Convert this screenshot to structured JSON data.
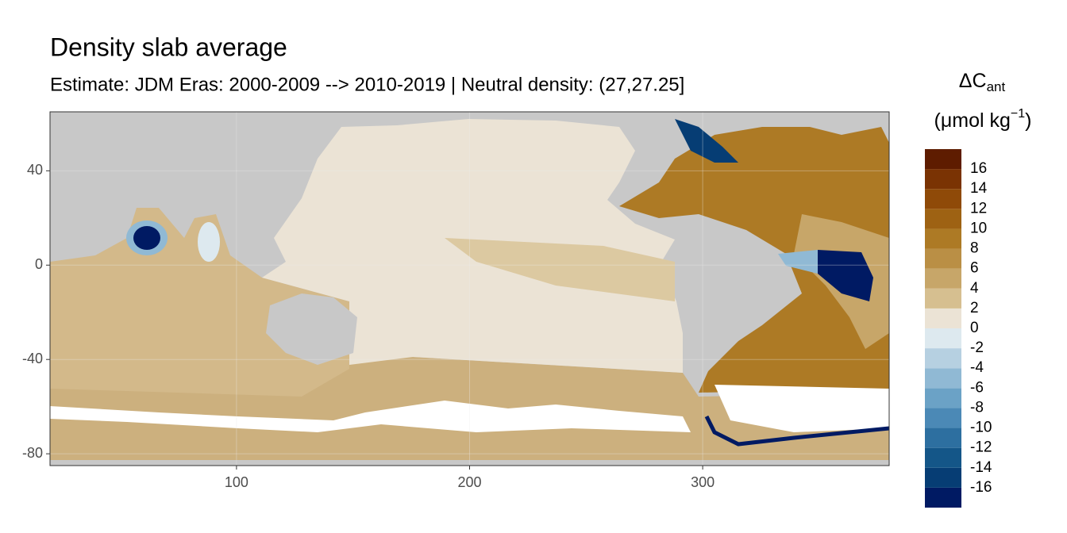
{
  "chart_data": {
    "type": "map",
    "title": "Density slab average",
    "subtitle": "Estimate: JDM Eras: 2000-2009 --> 2010-2019 | Neutral density: (27,27.25]",
    "xlim": [
      20,
      380
    ],
    "ylim": [
      -85,
      65
    ],
    "xticks": [
      100,
      200,
      300
    ],
    "yticks": [
      -80,
      -40,
      0,
      40
    ],
    "grid": true,
    "legend": {
      "title": "ΔC",
      "title_sub": "ant",
      "unit": "(μmol kg",
      "unit_sup": "−1",
      "unit_end": ")"
    },
    "colorbar": {
      "bins": [
        -18,
        -16,
        -14,
        -12,
        -10,
        -8,
        -6,
        -4,
        -2,
        0,
        2,
        4,
        6,
        8,
        10,
        12,
        14,
        16,
        18
      ],
      "colors": [
        "#001a63",
        "#063d74",
        "#145688",
        "#2d6fa0",
        "#4b89b6",
        "#6ba2c6",
        "#90b9d4",
        "#b6d0e1",
        "#dde9ef",
        "#ebe3d5",
        "#d6bf90",
        "#c7a669",
        "#ba8f45",
        "#ad7a25",
        "#9e6213",
        "#8f4a08",
        "#7a3303",
        "#5e1c00"
      ],
      "ticks": [
        -16,
        -14,
        -12,
        -10,
        -8,
        -6,
        -4,
        -2,
        0,
        2,
        4,
        6,
        8,
        10,
        12,
        14,
        16
      ]
    }
  }
}
